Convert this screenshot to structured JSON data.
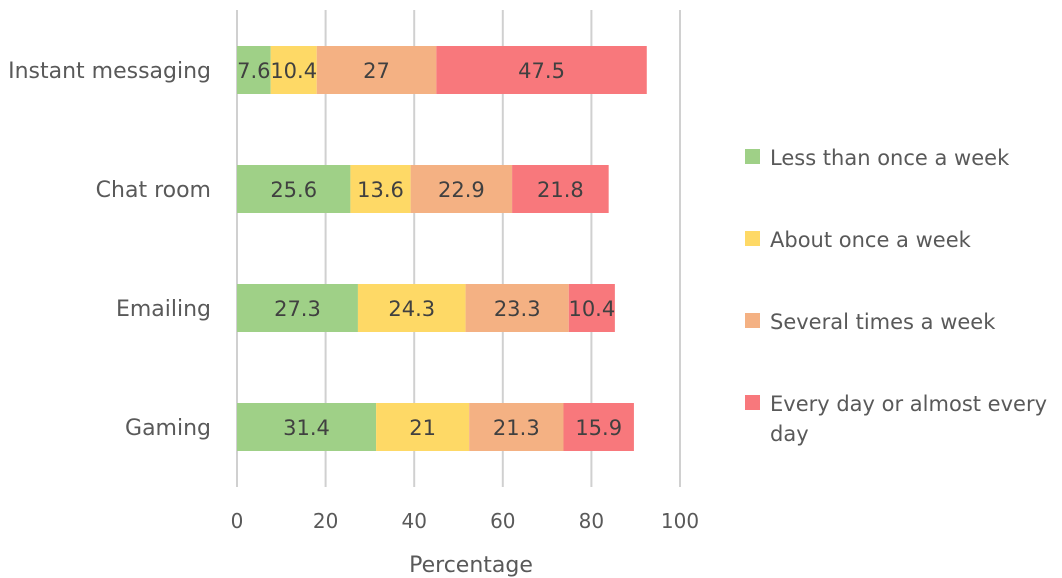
{
  "chart_data": {
    "type": "bar",
    "orientation": "horizontal",
    "stacked": true,
    "categories": [
      "Instant messaging",
      "Chat room",
      "Emailing",
      "Gaming"
    ],
    "series": [
      {
        "name": "Less than once a week",
        "color": "#9fd087",
        "values": [
          7.6,
          25.6,
          27.3,
          31.4
        ],
        "labels": [
          "7.6",
          "25.6",
          "27.3",
          "31.4"
        ]
      },
      {
        "name": "About once a week",
        "color": "#fed966",
        "values": [
          10.4,
          13.6,
          24.3,
          21
        ],
        "labels": [
          "10.4",
          "13.6",
          "24.3",
          "21"
        ]
      },
      {
        "name": "Several times a week",
        "color": "#f4b183",
        "values": [
          27,
          22.9,
          23.3,
          21.3
        ],
        "labels": [
          "27",
          "22.9",
          "23.3",
          "21.3"
        ]
      },
      {
        "name": "Every day or almost every day",
        "color": "#f8787c",
        "values": [
          47.5,
          21.8,
          10.4,
          15.9
        ],
        "labels": [
          "47.5",
          "21.8",
          "10.4",
          "15.9"
        ]
      }
    ],
    "xlabel": "Percentage",
    "ylabel": "",
    "xlim": [
      0,
      100
    ],
    "xticks": [
      "0",
      "20",
      "40",
      "60",
      "80",
      "100"
    ],
    "grid": true,
    "legend_position": "right"
  }
}
